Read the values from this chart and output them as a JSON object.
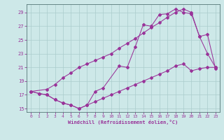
{
  "xlabel": "Windchill (Refroidissement éolien,°C)",
  "bg_color": "#cde8e8",
  "line_color": "#993399",
  "grid_color": "#aacccc",
  "xlim": [
    -0.5,
    23.5
  ],
  "ylim": [
    14.5,
    30.2
  ],
  "yticks": [
    15,
    17,
    19,
    21,
    23,
    25,
    27,
    29
  ],
  "xticks": [
    0,
    1,
    2,
    3,
    4,
    5,
    6,
    7,
    8,
    9,
    10,
    11,
    12,
    13,
    14,
    15,
    16,
    17,
    18,
    19,
    20,
    21,
    22,
    23
  ],
  "line1_x": [
    0,
    1,
    2,
    3,
    4,
    5,
    6,
    7,
    8,
    9,
    11,
    12,
    13,
    14,
    15,
    16,
    17,
    18,
    19,
    20,
    21,
    22,
    23
  ],
  "line1_y": [
    17.5,
    17.2,
    17.0,
    16.3,
    15.8,
    15.5,
    15.0,
    15.5,
    17.5,
    18.0,
    21.2,
    21.0,
    24.0,
    27.2,
    27.0,
    28.7,
    28.8,
    29.5,
    29.0,
    28.8,
    25.5,
    25.8,
    20.8
  ],
  "line2_x": [
    0,
    2,
    3,
    4,
    5,
    6,
    7,
    8,
    9,
    10,
    11,
    12,
    13,
    14,
    15,
    16,
    17,
    18,
    19,
    20,
    21,
    22,
    23
  ],
  "line2_y": [
    17.5,
    17.8,
    18.5,
    19.5,
    20.2,
    21.0,
    21.5,
    22.0,
    22.5,
    23.0,
    23.8,
    24.5,
    25.2,
    26.0,
    26.8,
    27.5,
    28.3,
    29.0,
    29.5,
    29.0,
    25.5,
    23.0,
    21.0
  ],
  "line3_x": [
    0,
    1,
    2,
    3,
    4,
    5,
    6,
    7,
    8,
    9,
    10,
    11,
    12,
    13,
    14,
    15,
    16,
    17,
    18,
    19,
    20,
    21,
    22,
    23
  ],
  "line3_y": [
    17.5,
    17.2,
    17.0,
    16.3,
    15.8,
    15.5,
    15.0,
    15.5,
    16.0,
    16.5,
    17.0,
    17.5,
    18.0,
    18.5,
    19.0,
    19.5,
    20.0,
    20.5,
    21.2,
    21.5,
    20.5,
    20.8,
    21.0,
    21.0
  ]
}
